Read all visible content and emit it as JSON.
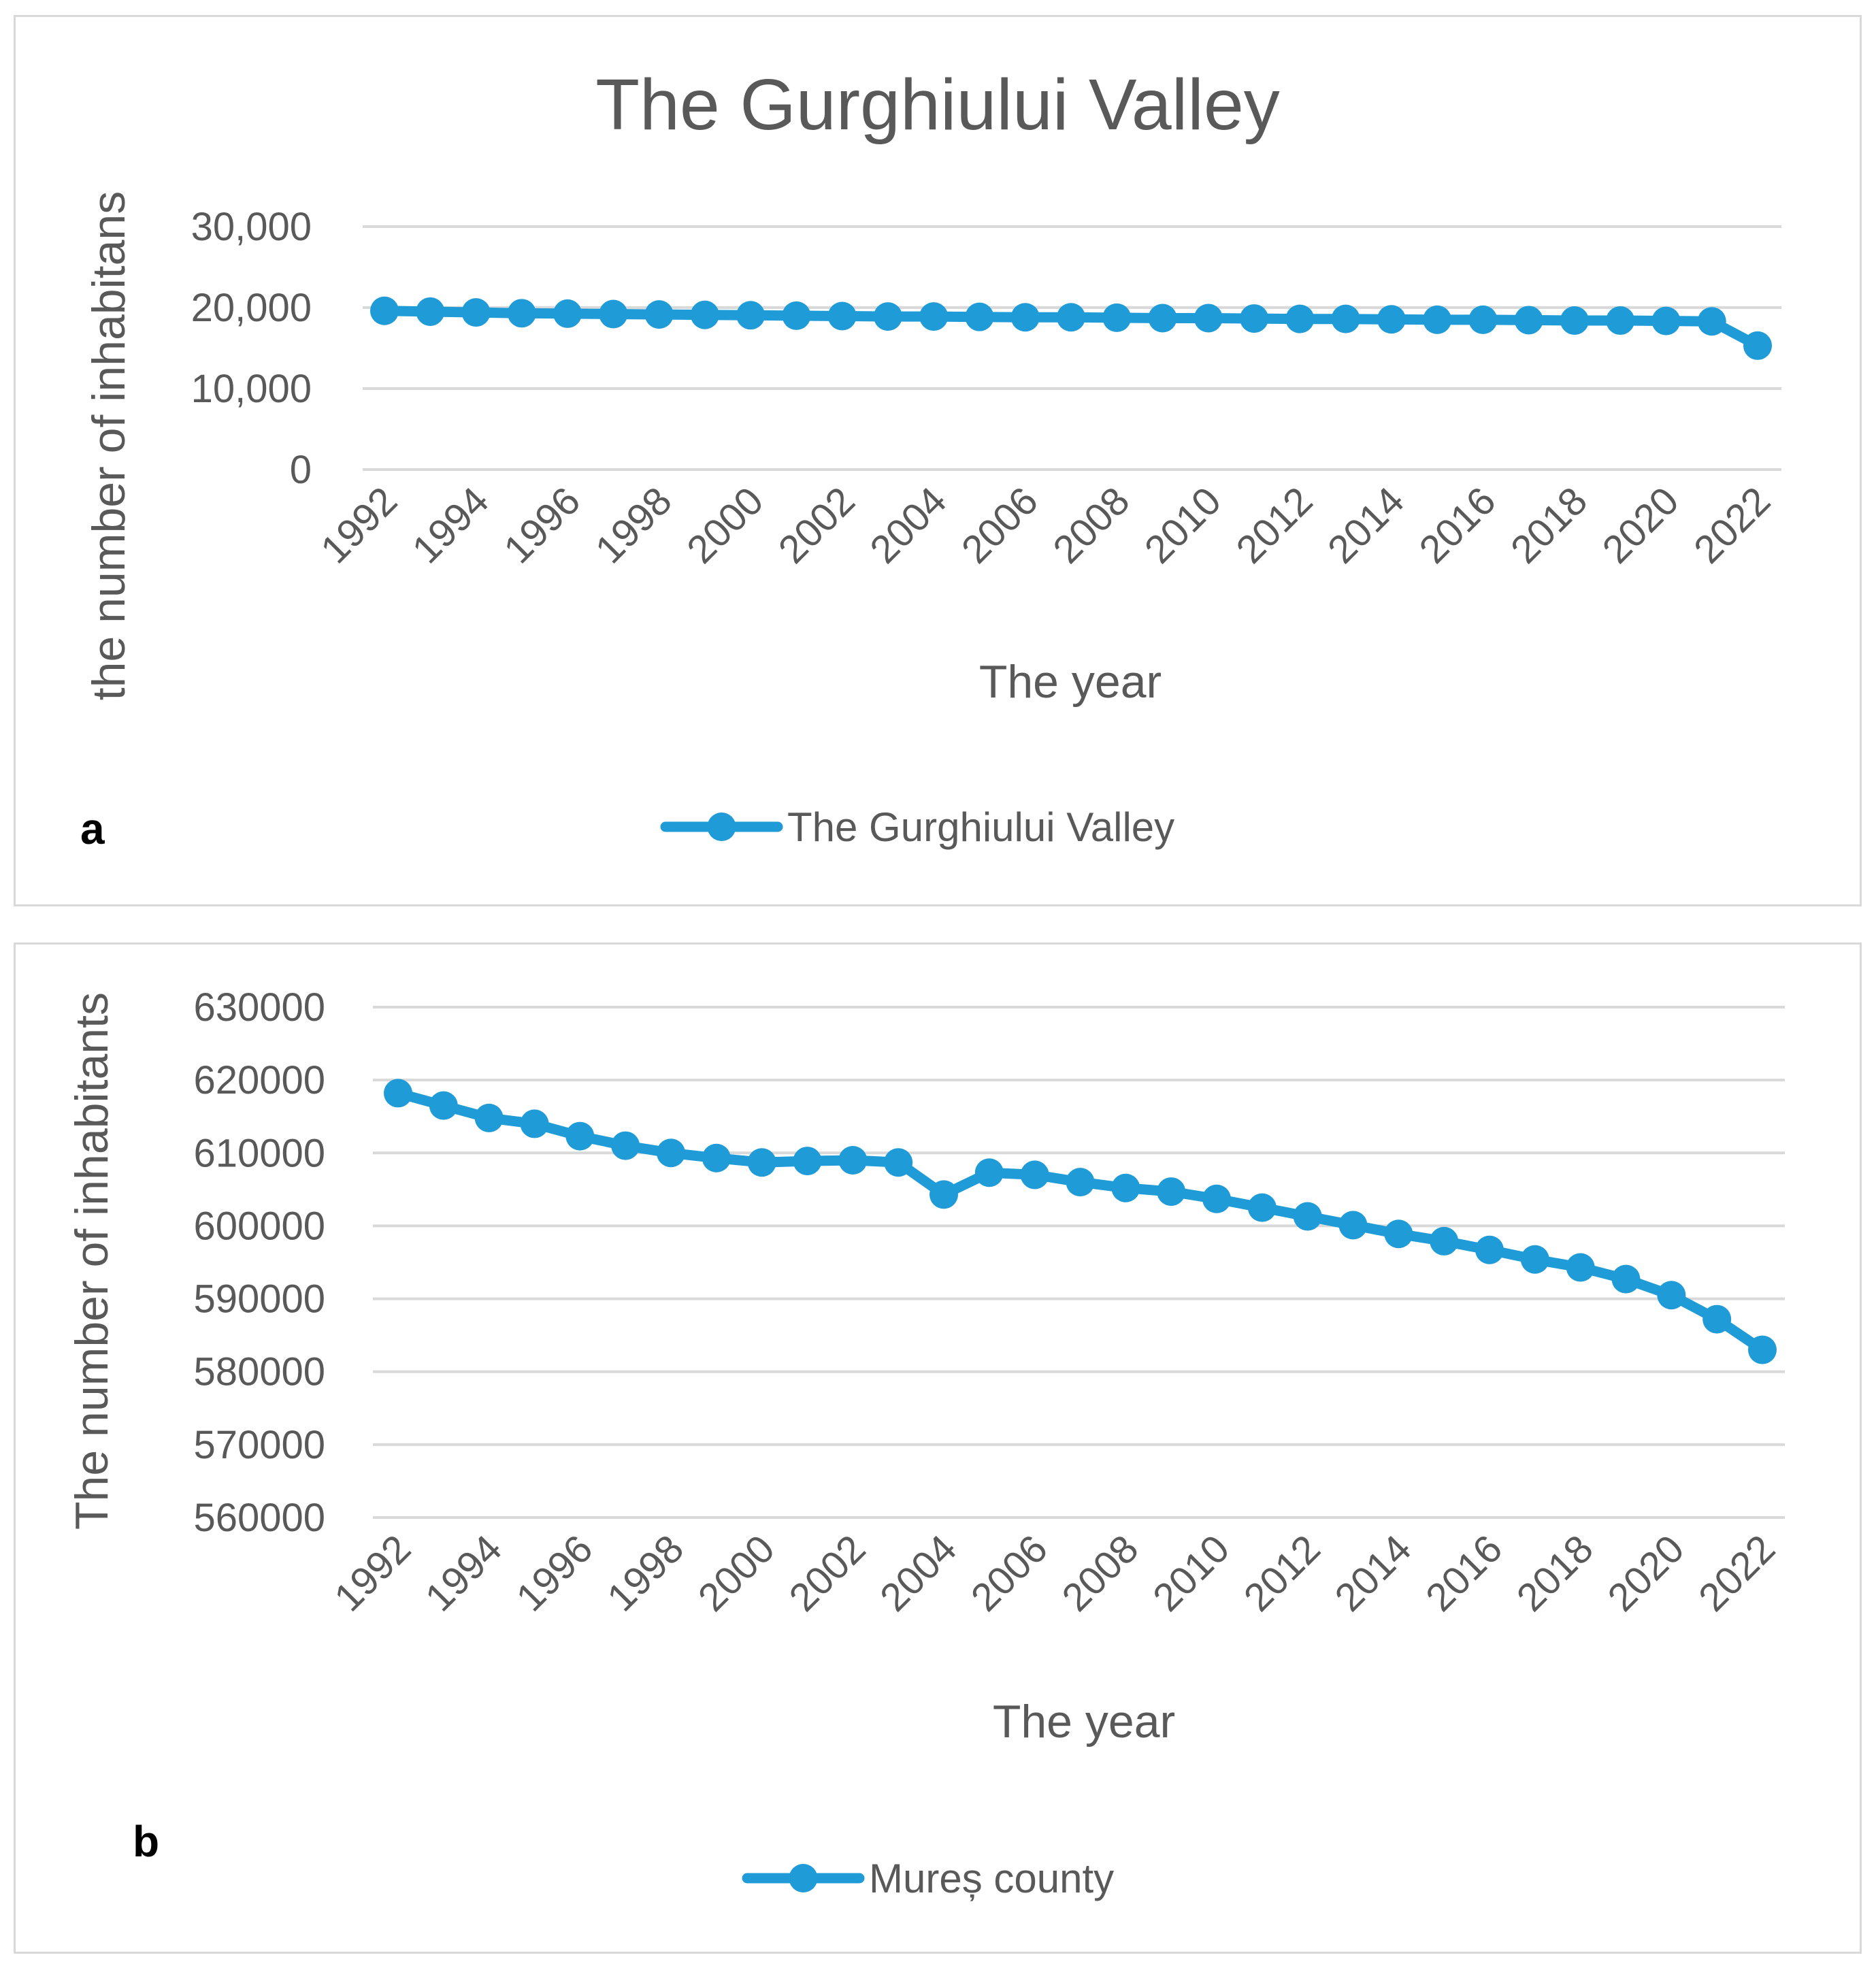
{
  "colors": {
    "series": "#1f9bd7",
    "grid": "#d9d9d9",
    "text": "#595959"
  },
  "chart_data": [
    {
      "type": "line",
      "panel_label": "a",
      "title": "The Gurghiului Valley",
      "xlabel": "The year",
      "ylabel": "the number of inhabitans",
      "ylim": [
        0,
        30000
      ],
      "yticks": [
        "0",
        "10,000",
        "20,000",
        "30,000"
      ],
      "xtick_labels": [
        "1992",
        "1994",
        "1996",
        "1998",
        "2000",
        "2002",
        "2004",
        "2006",
        "2008",
        "2010",
        "2012",
        "2014",
        "2016",
        "2018",
        "2020",
        "2022"
      ],
      "x": [
        1992,
        1993,
        1994,
        1995,
        1996,
        1997,
        1998,
        1999,
        2000,
        2001,
        2002,
        2003,
        2004,
        2005,
        2006,
        2007,
        2008,
        2009,
        2010,
        2011,
        2012,
        2013,
        2014,
        2015,
        2016,
        2017,
        2018,
        2019,
        2020,
        2021,
        2022
      ],
      "series": [
        {
          "name": "The Gurghiului Valley",
          "values": [
            19600,
            19500,
            19400,
            19300,
            19250,
            19200,
            19150,
            19100,
            19050,
            19000,
            18950,
            18900,
            18900,
            18850,
            18800,
            18800,
            18750,
            18700,
            18700,
            18650,
            18600,
            18600,
            18550,
            18500,
            18500,
            18450,
            18400,
            18400,
            18350,
            18300,
            15300
          ]
        }
      ],
      "legend": "bottom"
    },
    {
      "type": "line",
      "panel_label": "b",
      "title": "",
      "xlabel": "The year",
      "ylabel": "The number of inhabitants",
      "ylim": [
        560000,
        630000
      ],
      "yticks": [
        "560000",
        "570000",
        "580000",
        "590000",
        "600000",
        "610000",
        "620000",
        "630000"
      ],
      "xtick_labels": [
        "1992",
        "1994",
        "1996",
        "1998",
        "2000",
        "2002",
        "2004",
        "2006",
        "2008",
        "2010",
        "2012",
        "2014",
        "2016",
        "2018",
        "2020",
        "2022"
      ],
      "x": [
        1992,
        1993,
        1994,
        1995,
        1996,
        1997,
        1998,
        1999,
        2000,
        2001,
        2002,
        2003,
        2004,
        2005,
        2006,
        2007,
        2008,
        2009,
        2010,
        2011,
        2012,
        2013,
        2014,
        2015,
        2016,
        2017,
        2018,
        2019,
        2020,
        2021,
        2022
      ],
      "series": [
        {
          "name": "Mureș county",
          "values": [
            618200,
            616500,
            614800,
            614000,
            612300,
            611000,
            610000,
            609300,
            608700,
            608900,
            609000,
            608700,
            604300,
            607300,
            607000,
            606000,
            605200,
            604700,
            603700,
            602500,
            601300,
            600100,
            598900,
            597900,
            596700,
            595400,
            594300,
            592700,
            590500,
            587200,
            583000
          ]
        }
      ],
      "legend": "bottom"
    }
  ]
}
